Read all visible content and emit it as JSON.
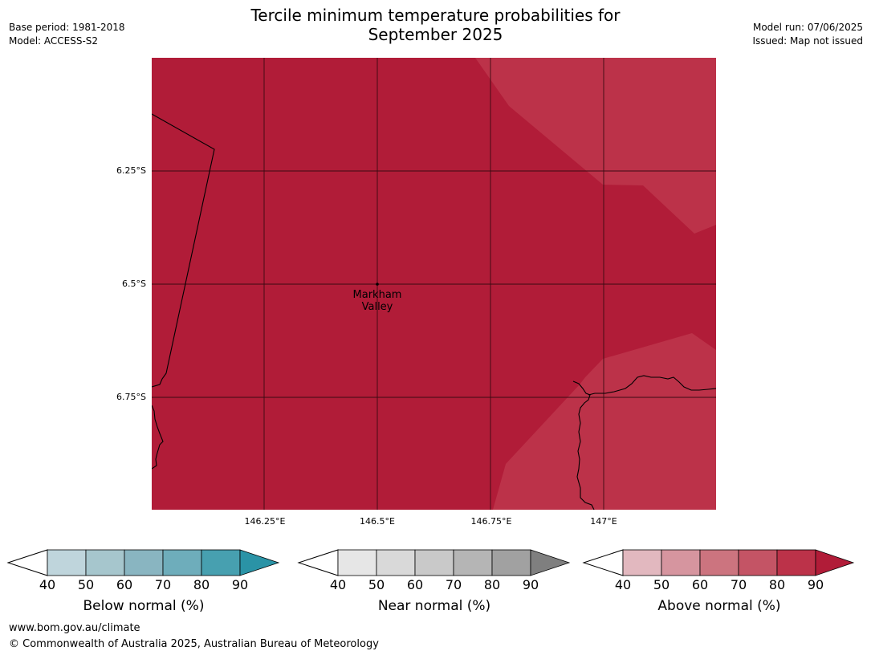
{
  "header": {
    "title_line1": "Tercile minimum temperature probabilities for",
    "title_line2": "September 2025",
    "base_period": "Base period: 1981-2018",
    "model": "Model: ACCESS-S2",
    "model_run": "Model run: 07/06/2025",
    "issued": "Issued: Map not issued"
  },
  "map": {
    "latitude_labels": [
      "6.25°S",
      "6.5°S",
      "6.75°S"
    ],
    "longitude_labels": [
      "146.25°E",
      "146.5°E",
      "146.75°E",
      "147°E"
    ],
    "place": {
      "line1": "Markham",
      "line2": "Valley"
    },
    "colors": {
      "base": "#b11c38",
      "lighter": "#bc3249",
      "coast": "#000000",
      "grid": "#3a0a12"
    }
  },
  "legends": [
    {
      "name": "Below normal (%)",
      "ticks": [
        "40",
        "50",
        "60",
        "70",
        "80",
        "90"
      ],
      "colors": [
        "#bfd5dc",
        "#a6c6cd",
        "#89b5c1",
        "#6eadbb",
        "#47a0b0",
        "#2a93a6"
      ]
    },
    {
      "name": "Near normal (%)",
      "ticks": [
        "40",
        "50",
        "60",
        "70",
        "80",
        "90"
      ],
      "colors": [
        "#e6e6e6",
        "#d9d9d9",
        "#c9c9c9",
        "#b5b5b5",
        "#a1a1a1",
        "#7f7f7f"
      ]
    },
    {
      "name": "Above normal (%)",
      "ticks": [
        "40",
        "50",
        "60",
        "70",
        "80",
        "90"
      ],
      "colors": [
        "#e2b8bf",
        "#d6959f",
        "#cc747f",
        "#c45465",
        "#bc3249",
        "#b11c38"
      ]
    }
  ],
  "footer": {
    "url": "www.bom.gov.au/climate",
    "copyright": "© Commonwealth of Australia 2025, Australian Bureau of Meteorology"
  }
}
